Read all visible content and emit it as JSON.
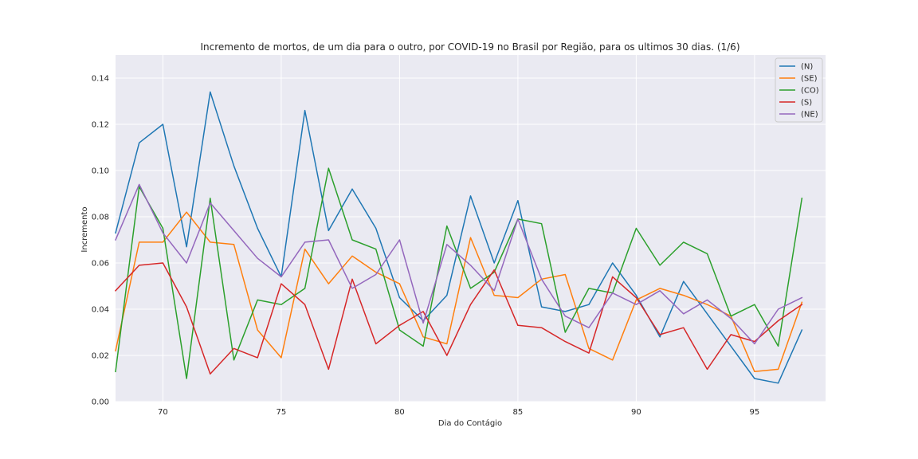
{
  "chart_data": {
    "type": "line",
    "title": "Incremento de mortos, de um dia para o outro, por COVID-19 no Brasil por Região, para os ultimos 30 dias. (1/6)",
    "xlabel": "Dia do Contágio",
    "ylabel": "Incremento",
    "xlim": [
      68,
      98
    ],
    "ylim": [
      0,
      0.15
    ],
    "xticks": [
      70,
      75,
      80,
      85,
      90,
      95
    ],
    "yticks": [
      0.0,
      0.02,
      0.04,
      0.06,
      0.08,
      0.1,
      0.12,
      0.14
    ],
    "ytick_labels": [
      "0.00",
      "0.02",
      "0.04",
      "0.06",
      "0.08",
      "0.10",
      "0.12",
      "0.14"
    ],
    "grid": true,
    "legend_position": "top-right",
    "x": [
      68,
      69,
      70,
      71,
      72,
      73,
      74,
      75,
      76,
      77,
      78,
      79,
      80,
      81,
      82,
      83,
      84,
      85,
      86,
      87,
      88,
      89,
      90,
      91,
      92,
      93,
      94,
      95,
      96,
      97
    ],
    "series": [
      {
        "name": "(N)",
        "color": "#1f77b4",
        "values": [
          0.073,
          0.112,
          0.12,
          0.067,
          0.134,
          0.102,
          0.075,
          0.054,
          0.126,
          0.074,
          0.092,
          0.075,
          0.045,
          0.035,
          0.046,
          0.089,
          0.06,
          0.087,
          0.041,
          0.039,
          0.042,
          0.06,
          0.046,
          0.028,
          0.052,
          0.038,
          0.024,
          0.01,
          0.008,
          0.031
        ]
      },
      {
        "name": "(SE)",
        "color": "#ff7f0e",
        "values": [
          0.022,
          0.069,
          0.069,
          0.082,
          0.069,
          0.068,
          0.031,
          0.019,
          0.066,
          0.051,
          0.063,
          0.056,
          0.051,
          0.028,
          0.025,
          0.071,
          0.046,
          0.045,
          0.053,
          0.055,
          0.023,
          0.018,
          0.044,
          0.049,
          0.046,
          0.042,
          0.037,
          0.013,
          0.014,
          0.043
        ]
      },
      {
        "name": "(CO)",
        "color": "#2ca02c",
        "values": [
          0.013,
          0.093,
          0.075,
          0.01,
          0.088,
          0.018,
          0.044,
          0.042,
          0.049,
          0.101,
          0.07,
          0.066,
          0.031,
          0.024,
          0.076,
          0.049,
          0.056,
          0.079,
          0.077,
          0.03,
          0.049,
          0.047,
          0.075,
          0.059,
          0.069,
          0.064,
          0.037,
          0.042,
          0.024,
          0.088
        ]
      },
      {
        "name": "(S)",
        "color": "#d62728",
        "values": [
          0.048,
          0.059,
          0.06,
          0.041,
          0.012,
          0.023,
          0.019,
          0.051,
          0.042,
          0.014,
          0.053,
          0.025,
          0.033,
          0.039,
          0.02,
          0.042,
          0.057,
          0.033,
          0.032,
          0.026,
          0.021,
          0.054,
          0.045,
          0.029,
          0.032,
          0.014,
          0.029,
          0.026,
          0.035,
          0.042
        ]
      },
      {
        "name": "(NE)",
        "color": "#9467bd",
        "values": [
          0.07,
          0.094,
          0.073,
          0.06,
          0.086,
          0.074,
          0.062,
          0.054,
          0.069,
          0.07,
          0.049,
          0.055,
          0.07,
          0.034,
          0.068,
          0.059,
          0.048,
          0.079,
          0.053,
          0.037,
          0.032,
          0.047,
          0.042,
          0.048,
          0.038,
          0.044,
          0.036,
          0.025,
          0.04,
          0.045
        ]
      }
    ]
  }
}
